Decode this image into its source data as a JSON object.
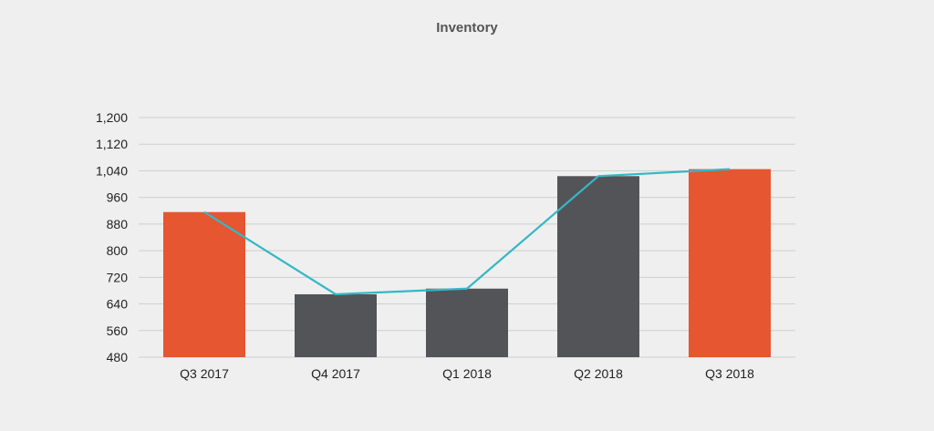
{
  "chart_data": {
    "type": "bar",
    "title": "Inventory",
    "categories": [
      "Q3 2017",
      "Q4 2017",
      "Q1 2018",
      "Q2 2018",
      "Q3 2018"
    ],
    "series": [
      {
        "type": "bar",
        "values": [
          916,
          669,
          686,
          1024,
          1045
        ],
        "colors": [
          "#e55631",
          "#535457",
          "#535457",
          "#535457",
          "#e55631"
        ]
      },
      {
        "type": "line",
        "values": [
          916,
          669,
          686,
          1024,
          1045
        ],
        "color": "#34b8c6"
      }
    ],
    "ylim": [
      480,
      1200
    ],
    "yticks": [
      480,
      560,
      640,
      720,
      800,
      880,
      960,
      1040,
      1120,
      1200
    ],
    "ytick_labels": [
      "480",
      "560",
      "640",
      "720",
      "800",
      "880",
      "960",
      "1,040",
      "1,120",
      "1,200"
    ],
    "grid": true,
    "gridline_color": "#cfcfcf"
  }
}
